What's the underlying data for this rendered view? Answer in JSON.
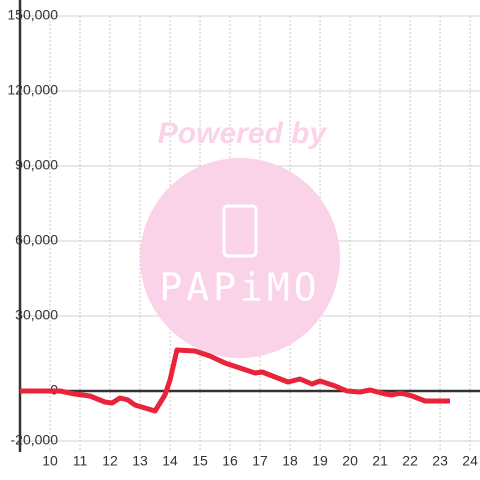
{
  "chart_data": {
    "type": "line",
    "watermark": "Powered by",
    "logo": "PAPiMO",
    "x": [
      9.0,
      10.33,
      10.83,
      11.33,
      11.83,
      12.07,
      12.33,
      12.6,
      12.83,
      13.17,
      13.5,
      13.83,
      14.0,
      14.23,
      14.83,
      15.33,
      15.83,
      16.33,
      16.83,
      17.07,
      17.5,
      17.93,
      18.33,
      18.73,
      19.0,
      19.5,
      19.9,
      20.33,
      20.67,
      21.17,
      21.4,
      21.67,
      22.07,
      22.5,
      23.33
    ],
    "series": [
      {
        "color": "#e8233a",
        "values": [
          0,
          0,
          -1200,
          -2000,
          -4400,
          -4800,
          -2800,
          -3600,
          -5600,
          -6800,
          -8000,
          -1600,
          4400,
          16400,
          16000,
          14000,
          11200,
          9200,
          7200,
          7600,
          5600,
          3600,
          4800,
          2800,
          4000,
          2000,
          0,
          -400,
          400,
          -1200,
          -1600,
          -800,
          -2000,
          -4000,
          -4000
        ]
      }
    ],
    "xlim": [
      9,
      24.33
    ],
    "xticks": [
      10,
      11,
      12,
      13,
      14,
      15,
      16,
      17,
      18,
      19,
      20,
      21,
      22,
      23,
      24
    ],
    "ylim": [
      -20000,
      150000
    ],
    "yticks": [
      {
        "value": -20000,
        "label": "-20,000"
      },
      0,
      {
        "value": 30000,
        "label": "30,000"
      },
      {
        "value": 60000,
        "label": "60,000"
      },
      {
        "value": 90000,
        "label": "90,000"
      },
      {
        "value": 120000,
        "label": "120,000"
      },
      {
        "value": 150000,
        "label": "150,000"
      }
    ],
    "grid": true
  }
}
